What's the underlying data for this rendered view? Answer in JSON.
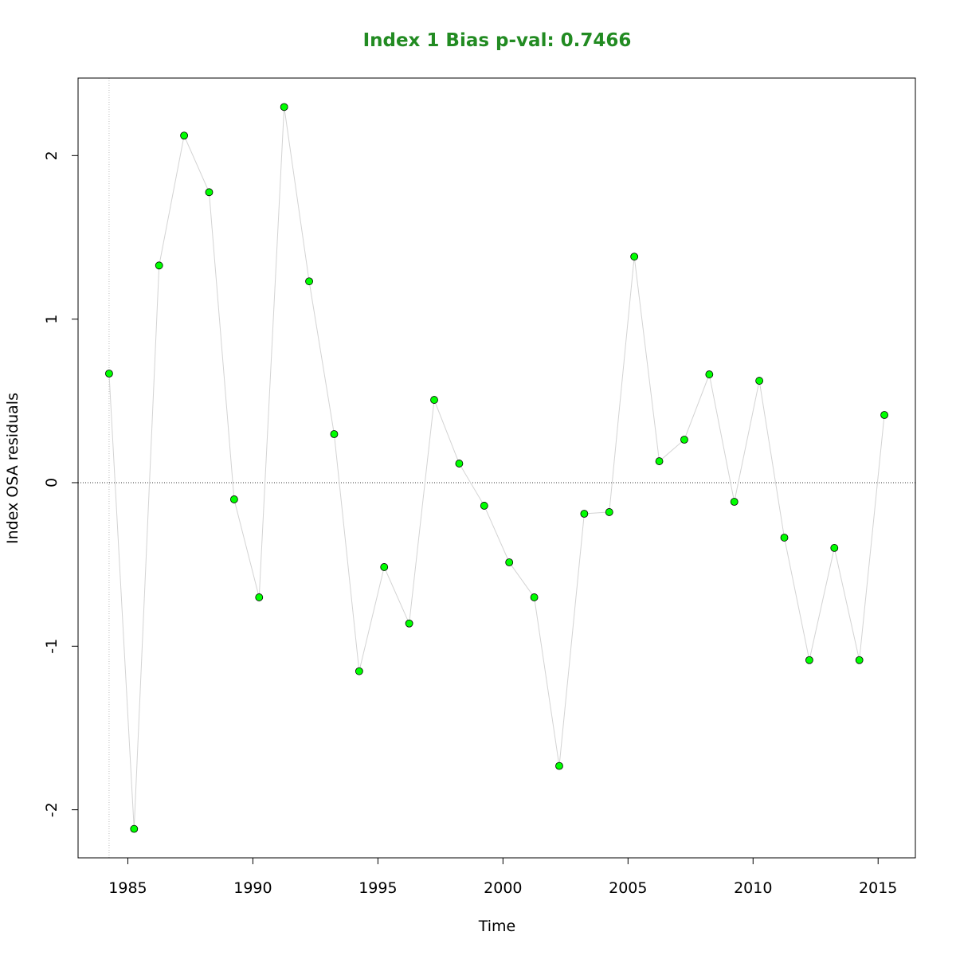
{
  "chart_data": {
    "type": "line",
    "title": "Index 1 Bias p-val: 0.7466",
    "title_color": "#228b22",
    "xlabel": "Time",
    "ylabel": "Index OSA residuals",
    "x": [
      1984.25,
      1985.25,
      1986.25,
      1987.25,
      1988.25,
      1989.25,
      1990.25,
      1991.25,
      1992.25,
      1993.25,
      1994.25,
      1995.25,
      1996.25,
      1997.25,
      1998.25,
      1999.25,
      2000.25,
      2001.25,
      2002.25,
      2003.25,
      2004.25,
      2005.25,
      2006.25,
      2007.25,
      2008.25,
      2009.25,
      2010.25,
      2011.25,
      2012.25,
      2013.25,
      2014.25,
      2015.25
    ],
    "values": [
      0.667,
      -2.117,
      1.328,
      2.122,
      1.776,
      -0.102,
      -0.701,
      2.297,
      1.231,
      0.297,
      -1.153,
      -0.516,
      -0.861,
      0.506,
      0.117,
      -0.141,
      -0.487,
      -0.701,
      -1.732,
      -0.19,
      -0.18,
      1.382,
      0.131,
      0.263,
      0.662,
      -0.117,
      0.623,
      -0.336,
      -1.085,
      -0.399,
      -1.085,
      0.414
    ],
    "line_color": "#d3d3d3",
    "marker_color": "#00ff00",
    "hline": 0,
    "vline": 1984.25,
    "xlim": [
      1983.01,
      2016.49
    ],
    "ylim": [
      -2.294,
      2.474
    ],
    "xticks": [
      1985,
      1990,
      1995,
      2000,
      2005,
      2010,
      2015
    ],
    "yticks": [
      -2,
      -1,
      0,
      1,
      2
    ]
  }
}
